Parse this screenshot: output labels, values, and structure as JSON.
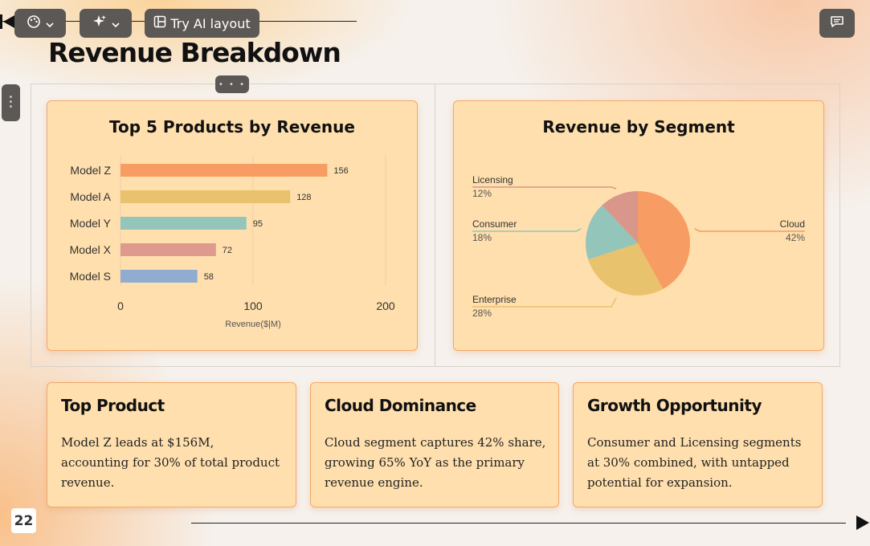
{
  "toolbar": {
    "theme_icon": "palette-icon",
    "ai_icon": "sparkles-icon",
    "layout_icon": "layout-icon",
    "ai_layout_label": "Try AI layout",
    "comments_icon": "comment-icon"
  },
  "slide": {
    "title": "Revenue Breakdown",
    "page_number": "22"
  },
  "charts": [
    {
      "title": "Top 5 Products by Revenue",
      "chart_data": {
        "type": "bar",
        "orientation": "horizontal",
        "categories": [
          "Model Z",
          "Model A",
          "Model Y",
          "Model X",
          "Model S"
        ],
        "values": [
          156,
          128,
          95,
          72,
          58
        ],
        "value_labels": [
          "156",
          "128",
          "95",
          "72",
          "58"
        ],
        "colors": [
          "#f79c62",
          "#e8c26c",
          "#93c5ba",
          "#df9a8e",
          "#90add1"
        ],
        "xlabel": "Revenue($|M)",
        "xticks": [
          "0",
          "100",
          "200"
        ],
        "xlim": [
          0,
          200
        ],
        "grid": true
      }
    },
    {
      "title": "Revenue by Segment",
      "chart_data": {
        "type": "pie",
        "labels": [
          "Cloud",
          "Enterprise",
          "Consumer",
          "Licensing"
        ],
        "values": [
          42,
          28,
          18,
          12
        ],
        "value_labels": [
          "42%",
          "28%",
          "18%",
          "12%"
        ],
        "colors": [
          "#f79c62",
          "#e8c26c",
          "#93c5ba",
          "#d9968b"
        ]
      }
    }
  ],
  "insights": [
    {
      "title": "Top Product",
      "text": "Model Z leads at $156M, accounting for 30% of total product revenue."
    },
    {
      "title": "Cloud Dominance",
      "text": "Cloud segment captures 42% share, growing 65% YoY as the primary revenue engine."
    },
    {
      "title": "Growth Opportunity",
      "text": "Consumer and Licensing segments at 30% combined, with untapped potential for expansion."
    }
  ],
  "nav": {
    "prev_icon": "skip-back-icon",
    "next_icon": "play-icon"
  }
}
